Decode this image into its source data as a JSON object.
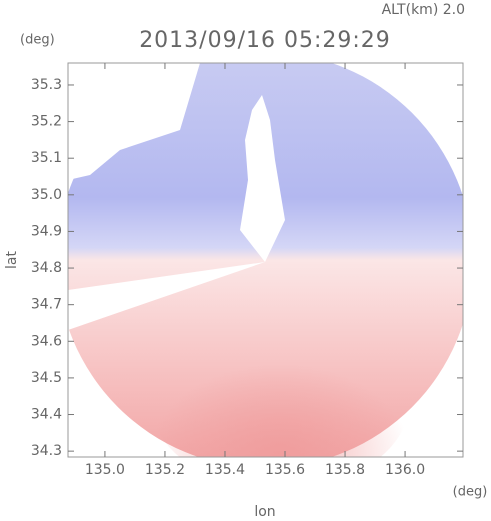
{
  "chart_data": {
    "type": "radar-map",
    "title": "2013/09/16 05:29:29",
    "annotation": "ALT(km) 2.0",
    "xlabel": "lon",
    "ylabel": "lat",
    "xunit": "(deg)",
    "yunit": "(deg)",
    "xlim": [
      134.877,
      136.193
    ],
    "ylim": [
      34.284,
      35.36
    ],
    "xticks": [
      {
        "value": 135,
        "label": "135.0"
      },
      135.2,
      135.4,
      135.6,
      135.8,
      {
        "value": 136,
        "label": "136.0"
      }
    ],
    "yticks": [
      34.3,
      34.4,
      34.5,
      34.6,
      34.7,
      34.8,
      34.9,
      {
        "value": 35,
        "label": "35.0"
      },
      35.1,
      35.2,
      35.3
    ]
  }
}
